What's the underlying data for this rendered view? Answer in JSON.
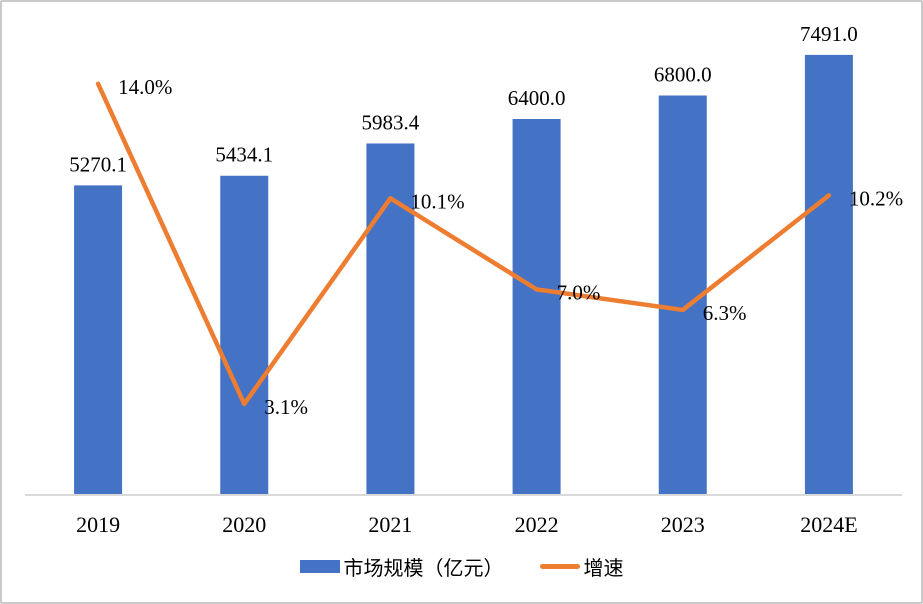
{
  "chart_data": {
    "type": "bar",
    "subtype": "combo-bar-line",
    "categories": [
      "2019",
      "2020",
      "2021",
      "2022",
      "2023",
      "2024E"
    ],
    "series": [
      {
        "name": "市场规模（亿元）",
        "type": "bar",
        "axis": "left",
        "color": "#4472C4",
        "values": [
          5270.1,
          5434.1,
          5983.4,
          6400.0,
          6800.0,
          7491.0
        ],
        "labels": [
          "5270.1",
          "5434.1",
          "5983.4",
          "6400.0",
          "6800.0",
          "7491.0"
        ]
      },
      {
        "name": "增速",
        "type": "line",
        "axis": "right",
        "color": "#ED7D31",
        "values": [
          14.0,
          3.1,
          10.1,
          7.0,
          6.3,
          10.2
        ],
        "labels": [
          "14.0%",
          "3.1%",
          "10.1%",
          "7.0%",
          "6.3%",
          "10.2%"
        ]
      }
    ],
    "title": "",
    "xlabel": "",
    "ylabel": "",
    "left_axis": {
      "min": 0,
      "max": 8000,
      "ticks_visible": false
    },
    "right_axis": {
      "min": 0,
      "max": 16,
      "ticks_visible": false
    },
    "grid": false,
    "legend_position": "bottom",
    "axis_line_color": "#D9D9D9",
    "label_color": "#000000",
    "background_color": "#FFFFFF",
    "frame_border_color": "#C9C9C9"
  },
  "legend": {
    "items": [
      {
        "label": "市场规模（亿元）",
        "swatch": "bar",
        "color": "#4472C4"
      },
      {
        "label": "增速",
        "swatch": "line",
        "color": "#ED7D31"
      }
    ]
  }
}
